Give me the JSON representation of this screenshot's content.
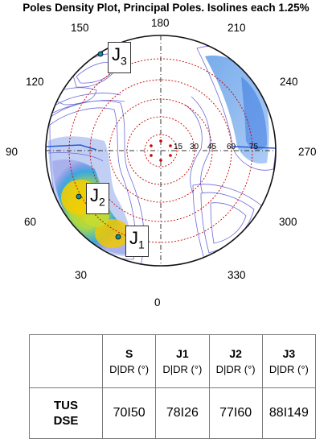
{
  "title": "Poles Density Plot, Principal Poles. Isolines each 1.25%",
  "azimuths": {
    "a0": "0",
    "a30": "30",
    "a60": "60",
    "a90": "90",
    "a120": "120",
    "a150": "150",
    "a180": "180",
    "a210": "210",
    "a240": "240",
    "a270": "270",
    "a300": "300",
    "a330": "330"
  },
  "dip_labels": [
    "15",
    "30",
    "45",
    "60",
    "75"
  ],
  "poles": [
    {
      "id": "J",
      "sub": "1"
    },
    {
      "id": "J",
      "sub": "2"
    },
    {
      "id": "J",
      "sub": "3"
    }
  ],
  "colors": {
    "contour": "#6a6ad8",
    "high_density": "#e8c000",
    "mid_density": "#3a9ae0",
    "grid": "#cc0000",
    "pole_marker": "#0c8fa0"
  },
  "table": {
    "headers": [
      {
        "name": "S",
        "unit": "D|DR (°)"
      },
      {
        "name": "J1",
        "unit": "D|DR (°)"
      },
      {
        "name": "J2",
        "unit": "D|DR (°)"
      },
      {
        "name": "J3",
        "unit": "D|DR (°)"
      }
    ],
    "row": {
      "label_line1": "TUS",
      "label_line2": "DSE",
      "values": [
        "70I50",
        "78I26",
        "77I60",
        "88I149"
      ]
    }
  }
}
